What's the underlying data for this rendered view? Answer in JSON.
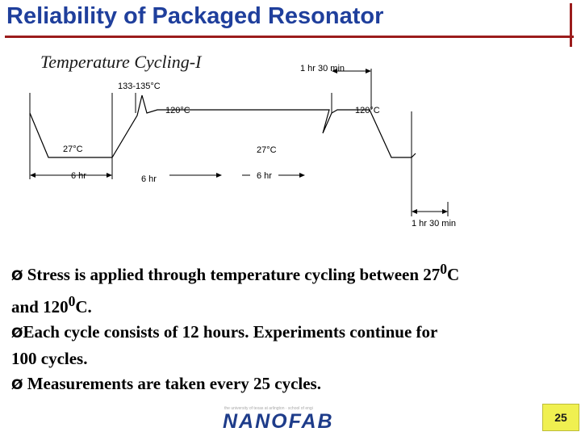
{
  "slide": {
    "title": "Reliability of Packaged Resonator",
    "subtitle": "Temperature Cycling-I",
    "page_number": "25",
    "footer_text": "the university of texas at arlington · school of engineering",
    "logo_text": "NANOFAB"
  },
  "diagram": {
    "labels": {
      "top_duration": "1 hr 30 min",
      "peak_temp": "133-135°C",
      "plateau_left": "120°C",
      "plateau_right": "120°C",
      "low_left": "27°C",
      "low_mid": "27°C",
      "dur_left": "6 hr",
      "dur_mid": "6 hr",
      "dur_right": "6 hr",
      "bottom_duration": "1 hr 30 min"
    },
    "colors": {
      "line": "#000000",
      "title": "#1f3f9c",
      "accent": "#9b1c1c"
    }
  },
  "bullets": [
    {
      "marker": "Ø",
      "text": " Stress is applied through temperature cycling between 27",
      "sup": "0",
      "after": "C"
    },
    {
      "marker": "",
      "text": "and 120",
      "sup": "0",
      "after": "C."
    },
    {
      "marker": "Ø",
      "text": "Each cycle consists of 12 hours. Experiments continue for",
      "sup": "",
      "after": ""
    },
    {
      "marker": "",
      "text": "100 cycles.",
      "sup": "",
      "after": ""
    },
    {
      "marker": "Ø",
      "text": " Measurements are taken every 25 cycles.",
      "sup": "",
      "after": ""
    }
  ]
}
